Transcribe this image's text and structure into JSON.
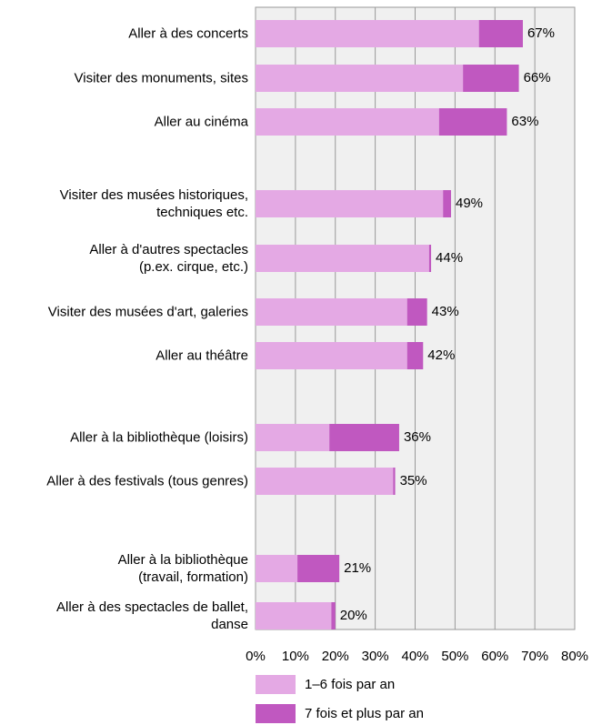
{
  "chart_data": {
    "type": "stacked_barh",
    "categories": [
      "Aller à des concerts",
      "Visiter des monuments, sites",
      "Aller au cinéma",
      "Visiter des musées historiques,\ntechniques etc.",
      "Aller à d'autres spectacles\n(p.ex. cirque, etc.)",
      "Visiter des musées d'art, galeries",
      "Aller au théâtre",
      "Aller à la bibliothèque (loisirs)",
      "Aller à des festivals (tous genres)",
      "Aller à la bibliothèque\n(travail, formation)",
      "Aller à des spectacles de ballet,\ndanse"
    ],
    "series": [
      {
        "name": "1–6 fois par an",
        "color": "#e4a9e4",
        "values": [
          56,
          52,
          46,
          47,
          43.5,
          38,
          38,
          18.5,
          34.5,
          10.5,
          19
        ]
      },
      {
        "name": "7 fois et plus par an",
        "color": "#c058c0",
        "values": [
          11,
          14,
          17,
          2,
          0.5,
          5,
          4,
          17.5,
          0.5,
          10.5,
          1
        ]
      }
    ],
    "totals": [
      67,
      66,
      63,
      49,
      44,
      43,
      42,
      36,
      35,
      21,
      20
    ],
    "total_labels": [
      "67%",
      "66%",
      "63%",
      "49%",
      "44%",
      "43%",
      "42%",
      "36%",
      "35%",
      "21%",
      "20%"
    ],
    "xlim": [
      0,
      80
    ],
    "xticks": [
      {
        "value": 0,
        "label": "0%"
      },
      {
        "value": 10,
        "label": "10%"
      },
      {
        "value": 20,
        "label": "20%"
      },
      {
        "value": 30,
        "label": "30%"
      },
      {
        "value": 40,
        "label": "40%"
      },
      {
        "value": 50,
        "label": "50%"
      },
      {
        "value": 60,
        "label": "60%"
      },
      {
        "value": 70,
        "label": "70%"
      },
      {
        "value": 80,
        "label": "80%"
      }
    ],
    "grid": true,
    "legend": "bottom"
  }
}
